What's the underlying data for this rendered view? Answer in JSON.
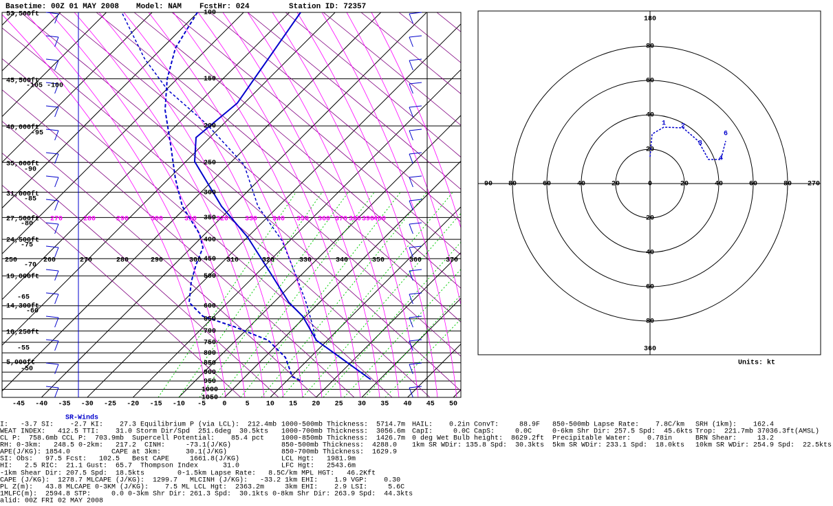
{
  "header": {
    "basetime": "Basetime: 00Z 01 MAY 2008",
    "model": "Model: NAM",
    "fcst": "FcstHr: 024",
    "station": "Station ID: 72357"
  },
  "skewt": {
    "pressure_levels": [
      100,
      150,
      200,
      250,
      300,
      350,
      400,
      450,
      500,
      600,
      650,
      700,
      750,
      800,
      850,
      900,
      950,
      1000,
      1050
    ],
    "temp_ticks": [
      -45,
      -40,
      -35,
      -30,
      -25,
      -20,
      -15,
      -10,
      -5,
      0,
      5,
      10,
      15,
      20,
      25,
      30,
      35,
      40,
      45,
      50
    ],
    "height_labels": [
      "53,500ft",
      "45,500ft",
      "40,000ft",
      "35,000ft",
      "31,000ft",
      "27,500ft",
      "24,500ft",
      "19,000ft",
      "14,300ft",
      "10,250ft",
      "5,000ft"
    ],
    "isotherm_labels": [
      "-105 -100",
      "-95",
      "-90",
      "-85",
      "-80",
      "-75",
      "-70",
      "-65",
      "-60",
      "-55",
      "-50"
    ],
    "thetae_labels": [
      "270",
      "280",
      "290",
      "300",
      "310",
      "320",
      "330",
      "340",
      "350",
      "360",
      "370",
      "380",
      "390",
      "400"
    ],
    "theta_labels": [
      "250",
      "260",
      "270",
      "280",
      "290",
      "300",
      "310",
      "320",
      "330",
      "340",
      "350",
      "360",
      "370"
    ]
  },
  "hodograph": {
    "top": "180",
    "bottom": "360",
    "left": "90",
    "right": "270",
    "center": "0",
    "ring_labels": [
      "20",
      "40",
      "60",
      "80"
    ],
    "point_labels": [
      "1",
      "2",
      "3",
      "4",
      "6"
    ],
    "units": "Units: kt"
  },
  "sr_winds": "SR-Winds",
  "indices": [
    [
      "I:   -3.7 SI:    -2.7 KI:    27.3 Equilibrium P (via LCL):  212.4mb",
      "1000-500mb Thickness:  5714.7m",
      "HAIL:    0.2in ConvT:     88.9F",
      "850-500mb Lapse Rate:    7.8C/km",
      "SRH (1km):    162.4"
    ],
    [
      "WEAT INDEX:   412.5 TTI:    31.0 Storm Dir/Spd  251.6deg  30.5kts",
      "1000-700mb Thickness:  3056.6m",
      "CapI:     0.0C CapS:     0.0C",
      "0-6km Shr Dir: 257.5 Spd:  45.6kts",
      "Trop:  221.7mb 37036.3ft(AMSL)"
    ],
    [
      "CL P:  758.6mb CCL P:  703.9mb  Supercell Potential:    85.4 pct",
      "1000-850mb Thickness:  1426.7m",
      "0 deg Wet Bulb height:  8629.2ft",
      "Precipitable Water:    0.78in",
      "BRN Shear:     13.2"
    ],
    [
      "RH: 0-3km:   248.5 0-2km:   217.2  CINH:     -73.1(J/KG)",
      "850-500mb Thickness:  4288.0",
      "1km SR WDir: 135.8 Spd:  30.3kts",
      "5km SR WDir: 233.1 Spd:  18.0kts",
      "10km SR WDir: 254.9 Spd:  22.5kts"
    ],
    [
      "APE(J/KG): 1854.0          CAPE at 3km:      30.1(J/KG)",
      "850-700mb Thickness:  1629.9"
    ],
    [
      "SI: Obs:   97.5 Fcst:   102.5   Best CAPE     1661.8(J/KG)",
      "LCL Hgt:   1981.9m"
    ],
    [
      "HI:   2.5 RIC:  21.1 Gust:  65.7  Thompson Index      31.0",
      "LFC Hgt:   2543.6m"
    ],
    [
      "-1km Shear Dir: 207.5 Spd:  18.5kts        0-1.5km Lapse Rate:   8.5C/km MPL HGT:   46.2Kft"
    ],
    [
      "CAPE (J/KG):  1278.7 MLCAPE (J/KG):  1299.7   MLCINH (J/KG):   -33.2 1km EHI:    1.9 VGP:    0.30"
    ],
    [
      "PL Z(m):   43.8 MLCAPE 0-3KM (J/KG):    7.5 ML LCL Hgt:  2363.2m     3km EHI:    2.9 LSI:     5.6C"
    ],
    [
      "1MLFC(m):  2594.8 STP:     0.0 0-3km Shr Dir: 261.3 Spd:  30.1kts 0-8km Shr Dir: 263.9 Spd:  44.3kts"
    ],
    [
      "alid: 00Z FRI 02 MAY 2008"
    ]
  ]
}
